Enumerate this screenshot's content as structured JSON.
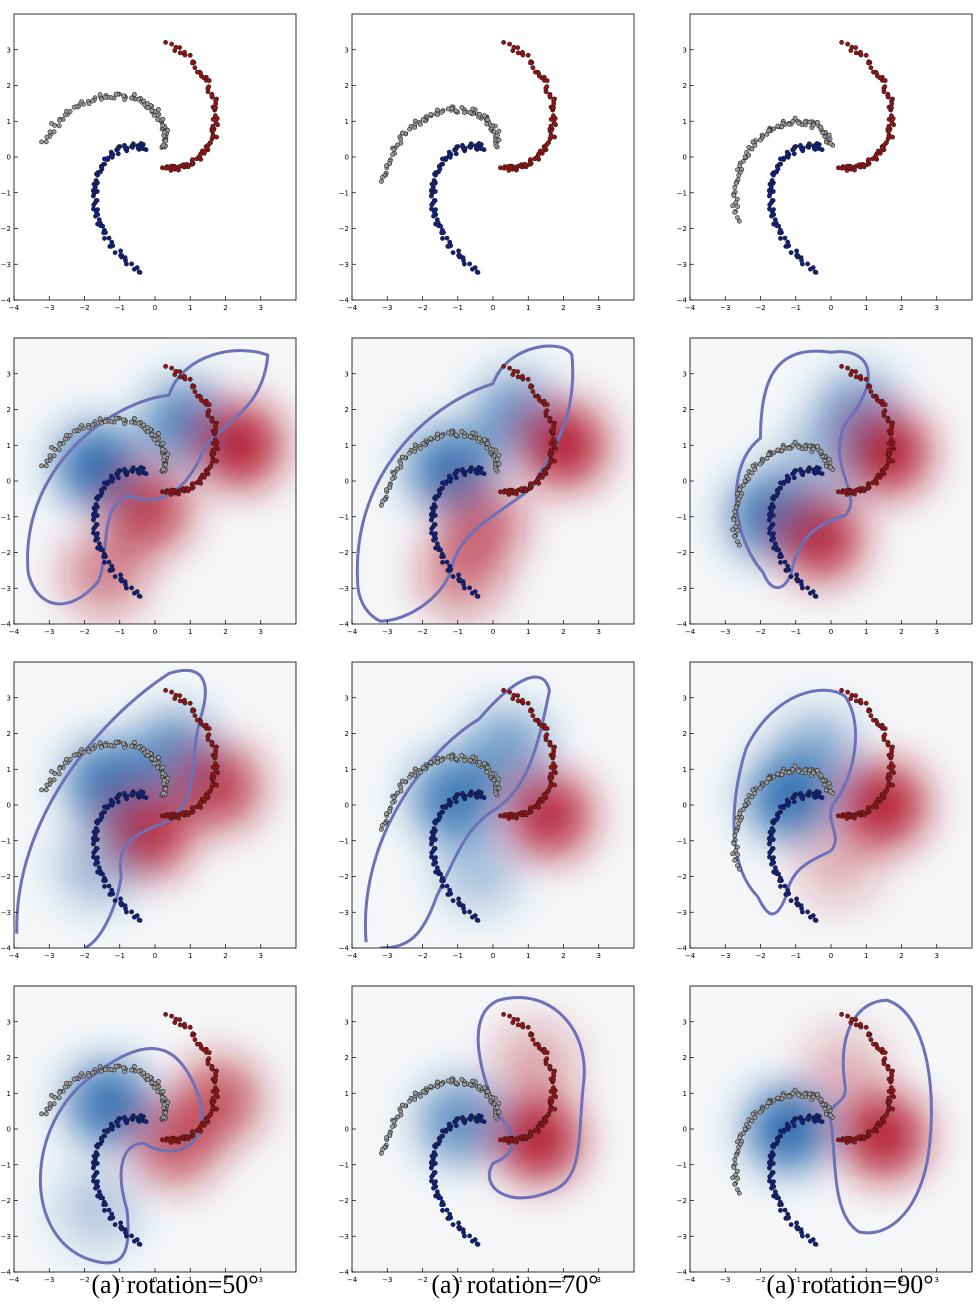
{
  "figure": {
    "captions": [
      "(a) rotation=50°",
      "(a) rotation=70°",
      "(a) rotation=90°"
    ],
    "columns": [
      {
        "rotation_deg": 50
      },
      {
        "rotation_deg": 70
      },
      {
        "rotation_deg": 90
      }
    ],
    "rows": [
      "scatter",
      "model-a",
      "model-b",
      "model-c"
    ],
    "colors": {
      "class_blue": "#0b1f8a",
      "class_red": "#a01010",
      "class_gray": "#9a9a9a",
      "decision_boundary": "#6d71b8",
      "heat_blue": "#2166ac",
      "heat_red": "#b2182b"
    }
  },
  "chart_data": {
    "type": "scatter",
    "xlim": [
      -4,
      4
    ],
    "ylim": [
      -4,
      4
    ],
    "x_ticks": [
      "−4",
      "−3",
      "−2",
      "−1",
      "0",
      "1",
      "2",
      "3"
    ],
    "y_ticks": [
      "−4",
      "−3",
      "−2",
      "−1",
      "0",
      "1",
      "2",
      "3"
    ],
    "grid": false,
    "series": [
      {
        "name": "",
        "color": "#0b1f8a",
        "arm_start_deg": 140,
        "rotates": false
      },
      {
        "name": "",
        "color": "#a01010",
        "arm_start_deg": -40,
        "rotates": false
      },
      {
        "name": "",
        "color": "#9a9a9a",
        "arm_start_deg": 50,
        "rotates": true
      }
    ]
  }
}
